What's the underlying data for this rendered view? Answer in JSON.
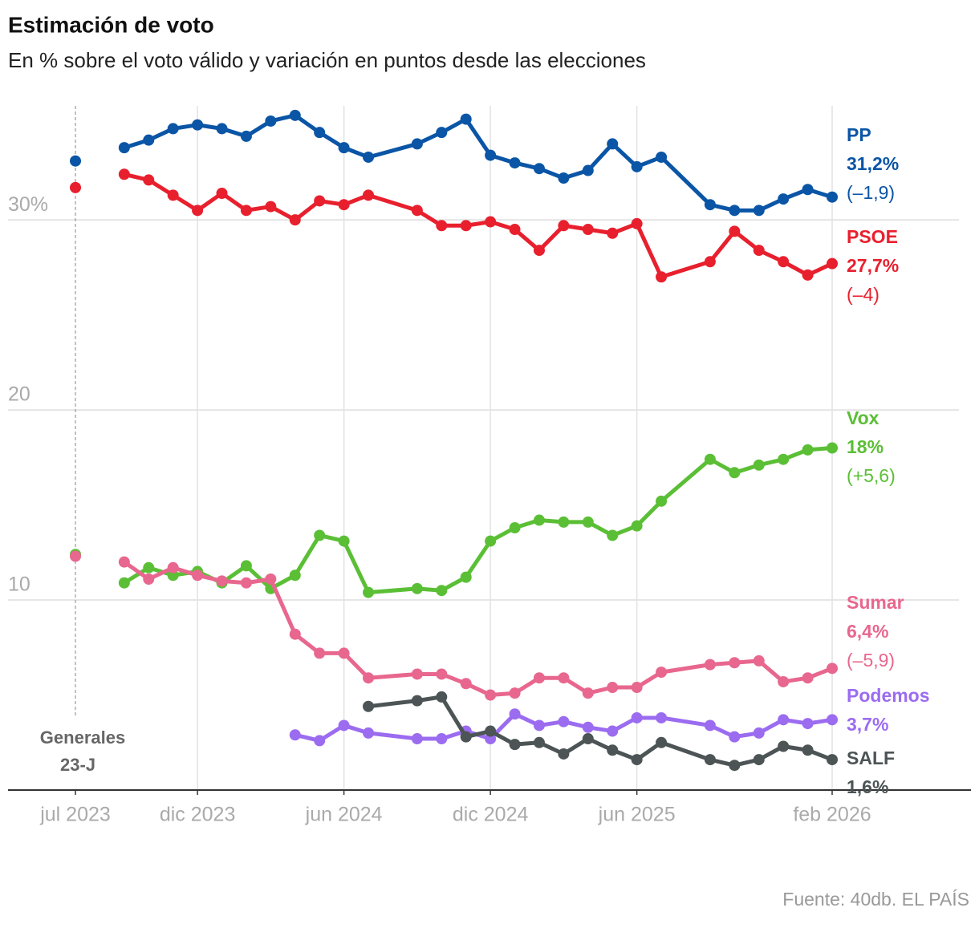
{
  "chart_data": {
    "type": "line",
    "title": "Estimación de voto",
    "subtitle": "En % sobre el voto válido y variación en puntos desde las elecciones",
    "annotation": [
      "Generales",
      "23-J"
    ],
    "source": "Fuente: 40db. EL PAÍS",
    "x": [
      "2023-07",
      "2023-08",
      "2023-09",
      "2023-10",
      "2023-11",
      "2023-12",
      "2024-01",
      "2024-02",
      "2024-03",
      "2024-04",
      "2024-05",
      "2024-06",
      "2024-07",
      "2024-09",
      "2024-10",
      "2024-11",
      "2024-12",
      "2025-01",
      "2025-02",
      "2025-03",
      "2025-04",
      "2025-05",
      "2025-06",
      "2025-07",
      "2025-09",
      "2025-10",
      "2025-11",
      "2025-12",
      "2026-01",
      "2026-02"
    ],
    "xlim": [
      "2023-07",
      "2026-02"
    ],
    "xticks": [
      {
        "value": "2023-07",
        "label": "jul 2023"
      },
      {
        "value": "2023-12",
        "label": "dic 2023"
      },
      {
        "value": "2024-06",
        "label": "jun 2024"
      },
      {
        "value": "2024-12",
        "label": "dic 2024"
      },
      {
        "value": "2025-06",
        "label": "jun 2025"
      },
      {
        "value": "2026-02",
        "label": "feb 2026"
      }
    ],
    "ylim": [
      0,
      36
    ],
    "yticks": [
      10,
      20,
      {
        "value": 30,
        "label": "30%"
      }
    ],
    "grid": true,
    "series": [
      {
        "name": "PP",
        "color": "#0a55a6",
        "last_label": "31,2%",
        "change_label": "(–1,9)",
        "values": [
          33.1,
          null,
          33.8,
          34.2,
          34.8,
          35.0,
          34.8,
          34.4,
          35.2,
          35.5,
          34.6,
          33.8,
          33.3,
          34.0,
          34.6,
          35.3,
          33.4,
          33.0,
          32.7,
          32.2,
          32.6,
          34.0,
          32.8,
          33.3,
          30.8,
          30.5,
          30.5,
          31.1,
          31.6,
          31.2
        ]
      },
      {
        "name": "PSOE",
        "color": "#e8202e",
        "last_label": "27,7%",
        "change_label": "(–4)",
        "values": [
          31.7,
          null,
          32.4,
          32.1,
          31.3,
          30.5,
          31.4,
          30.5,
          30.7,
          30.0,
          31.0,
          30.8,
          31.3,
          30.5,
          29.7,
          29.7,
          29.9,
          29.5,
          28.4,
          29.7,
          29.5,
          29.3,
          29.8,
          27.0,
          27.8,
          29.4,
          28.4,
          27.8,
          27.1,
          27.7
        ]
      },
      {
        "name": "Vox",
        "color": "#5bbf36",
        "last_label": "18%",
        "change_label": "(+5,6)",
        "values": [
          12.4,
          null,
          10.9,
          11.7,
          11.3,
          11.5,
          10.9,
          11.8,
          10.6,
          11.3,
          13.4,
          13.1,
          10.4,
          10.6,
          10.5,
          11.2,
          13.1,
          13.8,
          14.2,
          14.1,
          14.1,
          13.4,
          13.9,
          15.2,
          17.4,
          16.7,
          17.1,
          17.4,
          17.9,
          18.0
        ]
      },
      {
        "name": "Sumar",
        "color": "#e8678e",
        "last_label": "6,4%",
        "change_label": "(–5,9)",
        "values": [
          12.3,
          null,
          12.0,
          11.1,
          11.7,
          11.3,
          11.0,
          10.9,
          11.1,
          8.2,
          7.2,
          7.2,
          5.9,
          6.1,
          6.1,
          5.6,
          5.0,
          5.1,
          5.9,
          5.9,
          5.1,
          5.4,
          5.4,
          6.2,
          6.6,
          6.7,
          6.8,
          5.7,
          5.9,
          6.4
        ]
      },
      {
        "name": "Podemos",
        "color": "#9b6cf0",
        "last_label": "3,7%",
        "values": [
          null,
          null,
          null,
          null,
          null,
          null,
          null,
          null,
          null,
          2.9,
          2.6,
          3.4,
          3.0,
          2.7,
          2.7,
          3.1,
          2.7,
          4.0,
          3.4,
          3.6,
          3.3,
          3.1,
          3.8,
          3.8,
          3.4,
          2.8,
          3.0,
          3.7,
          3.5,
          3.7
        ]
      },
      {
        "name": "SALF",
        "color": "#4d5456",
        "last_label": "1,6%",
        "values": [
          null,
          null,
          null,
          null,
          null,
          null,
          null,
          null,
          null,
          null,
          null,
          null,
          4.4,
          4.7,
          4.9,
          2.8,
          3.1,
          2.4,
          2.5,
          1.9,
          2.7,
          2.1,
          1.6,
          2.5,
          1.6,
          1.3,
          1.6,
          2.3,
          2.1,
          1.6
        ]
      }
    ]
  }
}
